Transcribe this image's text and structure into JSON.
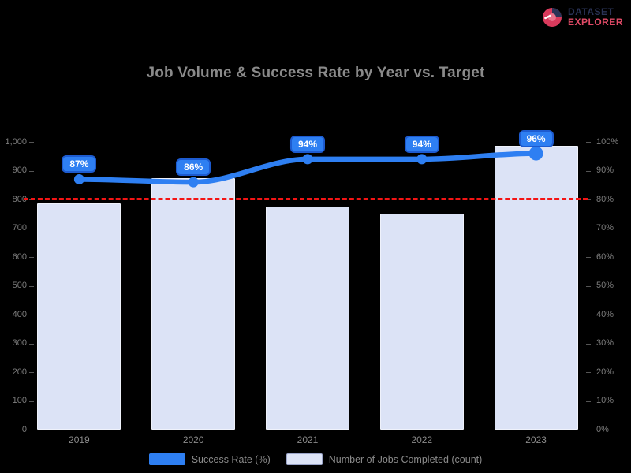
{
  "logo": {
    "line1": "DATASET",
    "line2": "EXPLORER",
    "icon_color": "#d93a5c",
    "icon_dark": "#2a3356"
  },
  "title": "Job Volume & Success Rate by Year vs. Target",
  "legend": {
    "items": [
      {
        "label": "Success Rate (%)",
        "color": "#2e7ff2",
        "type": "line"
      },
      {
        "label": "Number of Jobs Completed (count)",
        "color": "#dce3f6",
        "type": "bar"
      }
    ]
  },
  "chart_data": {
    "type": "bar",
    "title": "Job Volume & Success Rate by Year vs. Target",
    "categories": [
      "2019",
      "2020",
      "2021",
      "2022",
      "2023"
    ],
    "series": [
      {
        "name": "Number of Jobs Completed (count)",
        "type": "bar",
        "axis": "left",
        "color": "#dce3f6",
        "values": [
          785,
          875,
          775,
          750,
          985
        ]
      },
      {
        "name": "Success Rate (%)",
        "type": "line",
        "axis": "right",
        "color": "#2e7ff2",
        "values": [
          87,
          86,
          94,
          94,
          96
        ],
        "point_labels": [
          "87%",
          "86%",
          "94%",
          "94%",
          "96%"
        ]
      }
    ],
    "left_axis": {
      "min": 0,
      "max": 1000,
      "tick_labels": [
        "1,000",
        "900",
        "800",
        "700",
        "600",
        "500",
        "400",
        "300",
        "200",
        "100",
        "0"
      ]
    },
    "right_axis": {
      "min": 0,
      "max": 100,
      "tick_labels": [
        "100%",
        "90%",
        "80%",
        "70%",
        "60%",
        "50%",
        "40%",
        "30%",
        "20%",
        "10%",
        "0%"
      ]
    },
    "target_line": {
      "axis": "right",
      "value": 80,
      "color": "#f41414",
      "style": "dashed"
    },
    "legend_position": "bottom",
    "grid": false
  }
}
